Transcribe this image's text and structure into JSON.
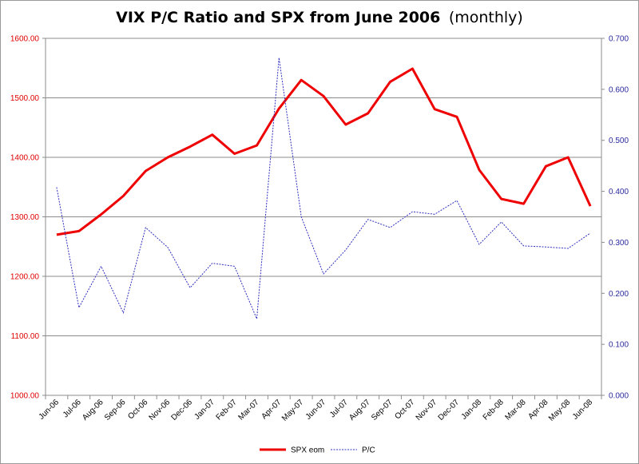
{
  "chart_data": {
    "type": "line",
    "title": "VIX P/C Ratio and SPX from June 2006",
    "subtitle": "(monthly)",
    "categories": [
      "Jun-06",
      "Jul-06",
      "Aug-06",
      "Sep-06",
      "Oct-06",
      "Nov-06",
      "Dec-06",
      "Jan-07",
      "Feb-07",
      "Mar-07",
      "Apr-07",
      "May-07",
      "Jun-07",
      "Jul-07",
      "Aug-07",
      "Sep-07",
      "Oct-07",
      "Nov-07",
      "Dec-07",
      "Jan-08",
      "Feb-08",
      "Mar-08",
      "Apr-08",
      "May-08",
      "Jun-08"
    ],
    "series": [
      {
        "name": "SPX eom",
        "axis": "left",
        "color": "#ee0000",
        "style": "solid",
        "values": [
          1270,
          1276,
          1304,
          1335,
          1377,
          1400,
          1418,
          1438,
          1406,
          1420,
          1482,
          1530,
          1503,
          1455,
          1474,
          1527,
          1549,
          1481,
          1468,
          1379,
          1330,
          1322,
          1385,
          1400,
          1318
        ]
      },
      {
        "name": "P/C",
        "axis": "right",
        "color": "#3030c0",
        "style": "dashed",
        "values": [
          0.408,
          0.172,
          0.253,
          0.162,
          0.329,
          0.29,
          0.211,
          0.259,
          0.253,
          0.15,
          0.662,
          0.35,
          0.238,
          0.285,
          0.345,
          0.329,
          0.36,
          0.355,
          0.382,
          0.296,
          0.34,
          0.293,
          0.291,
          0.288,
          0.318
        ]
      }
    ],
    "y_left": {
      "min": 1000,
      "max": 1600,
      "step": 100,
      "tick_labels": [
        "1000.00",
        "1100.00",
        "1200.00",
        "1300.00",
        "1400.00",
        "1500.00",
        "1600.00"
      ],
      "color": "#e00000"
    },
    "y_right": {
      "min": 0,
      "max": 0.7,
      "step": 0.1,
      "tick_labels": [
        "0.000",
        "0.100",
        "0.200",
        "0.300",
        "0.400",
        "0.500",
        "0.600",
        "0.700"
      ],
      "color": "#2a2aa0"
    },
    "grid": true,
    "legend_position": "bottom"
  }
}
